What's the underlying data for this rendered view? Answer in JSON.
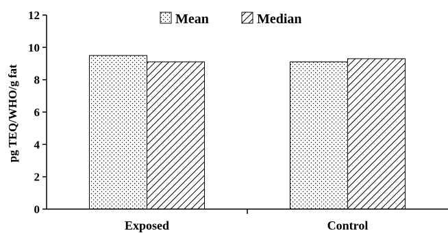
{
  "chart_data": {
    "type": "bar",
    "categories": [
      "Exposed",
      "Control"
    ],
    "series": [
      {
        "name": "Mean",
        "values": [
          9.5,
          9.1
        ],
        "pattern": "dots"
      },
      {
        "name": "Median",
        "values": [
          9.1,
          9.3
        ],
        "pattern": "diagonal-hatch"
      }
    ],
    "ylabel": "pg TEQ/WHO/g fat",
    "xlabel": "",
    "ylim": [
      0,
      12
    ],
    "yticks": [
      0,
      2,
      4,
      6,
      8,
      10,
      12
    ],
    "grid": false,
    "legend": "top-center",
    "colors": {
      "bar_fill": "#ffffff",
      "stroke": "#000000"
    }
  }
}
